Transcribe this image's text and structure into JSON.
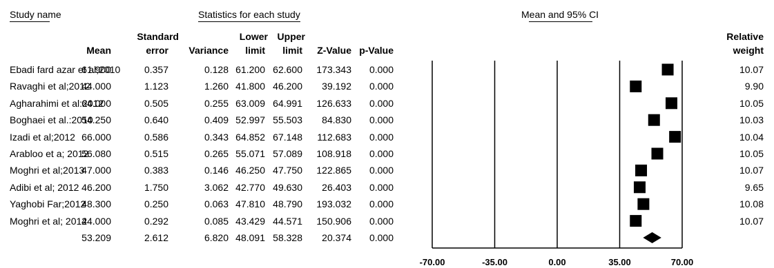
{
  "headers": {
    "study_name": "Study name",
    "stats_group": "Statistics for each study",
    "ci_group": "Mean and 95% CI",
    "mean": "Mean",
    "se_top": "Standard",
    "se_bottom": "error",
    "variance": "Variance",
    "lower_top": "Lower",
    "lower_bottom": "limit",
    "upper_top": "Upper",
    "upper_bottom": "limit",
    "z": "Z-Value",
    "p": "p-Value",
    "weight_top": "Relative",
    "weight_bottom": "weight"
  },
  "chart_data": {
    "type": "forest",
    "xlim": [
      -70,
      70
    ],
    "x_ticks": [
      "-70.00",
      "-35.00",
      "0.00",
      "35.00",
      "70.00"
    ],
    "x_tick_values": [
      -70,
      -35,
      0,
      35,
      70
    ],
    "studies": [
      {
        "name": "Ebadi fard azar et al;2010",
        "mean": "61.900",
        "se": "0.357",
        "variance": "0.128",
        "lower": "61.200",
        "upper": "62.600",
        "z": "173.343",
        "p": "0.000",
        "weight": "10.07",
        "value": 61.9
      },
      {
        "name": "Ravaghi et al;2012",
        "mean": "44.000",
        "se": "1.123",
        "variance": "1.260",
        "lower": "41.800",
        "upper": "46.200",
        "z": "39.192",
        "p": "0.000",
        "weight": "9.90",
        "value": 44.0
      },
      {
        "name": "Agharahimi et al:2012",
        "mean": "64.000",
        "se": "0.505",
        "variance": "0.255",
        "lower": "63.009",
        "upper": "64.991",
        "z": "126.633",
        "p": "0.000",
        "weight": "10.05",
        "value": 64.0
      },
      {
        "name": "Boghaei et al.:2010",
        "mean": "54.250",
        "se": "0.640",
        "variance": "0.409",
        "lower": "52.997",
        "upper": "55.503",
        "z": "84.830",
        "p": "0.000",
        "weight": "10.03",
        "value": 54.25
      },
      {
        "name": "Izadi et al;2012",
        "mean": "66.000",
        "se": "0.586",
        "variance": "0.343",
        "lower": "64.852",
        "upper": "67.148",
        "z": "112.683",
        "p": "0.000",
        "weight": "10.04",
        "value": 66.0
      },
      {
        "name": "Arabloo  et a; 2012",
        "mean": "56.080",
        "se": "0.515",
        "variance": "0.265",
        "lower": "55.071",
        "upper": "57.089",
        "z": "108.918",
        "p": "0.000",
        "weight": "10.05",
        "value": 56.08
      },
      {
        "name": "Moghri et al;2013",
        "mean": "47.000",
        "se": "0.383",
        "variance": "0.146",
        "lower": "46.250",
        "upper": "47.750",
        "z": "122.865",
        "p": "0.000",
        "weight": "10.07",
        "value": 47.0
      },
      {
        "name": "Adibi et al; 2012",
        "mean": "46.200",
        "se": "1.750",
        "variance": "3.062",
        "lower": "42.770",
        "upper": "49.630",
        "z": "26.403",
        "p": "0.000",
        "weight": "9.65",
        "value": 46.2
      },
      {
        "name": "Yaghobi Far;2012",
        "mean": "48.300",
        "se": "0.250",
        "variance": "0.063",
        "lower": "47.810",
        "upper": "48.790",
        "z": "193.032",
        "p": "0.000",
        "weight": "10.08",
        "value": 48.3
      },
      {
        "name": "Moghri et al; 2012",
        "mean": "44.000",
        "se": "0.292",
        "variance": "0.085",
        "lower": "43.429",
        "upper": "44.571",
        "z": "150.906",
        "p": "0.000",
        "weight": "10.07",
        "value": 44.0
      }
    ],
    "summary": {
      "mean": "53.209",
      "se": "2.612",
      "variance": "6.820",
      "lower": "48.091",
      "upper": "58.328",
      "z": "20.374",
      "p": "0.000",
      "value": 53.209,
      "lower_value": 48.091,
      "upper_value": 58.328
    }
  }
}
